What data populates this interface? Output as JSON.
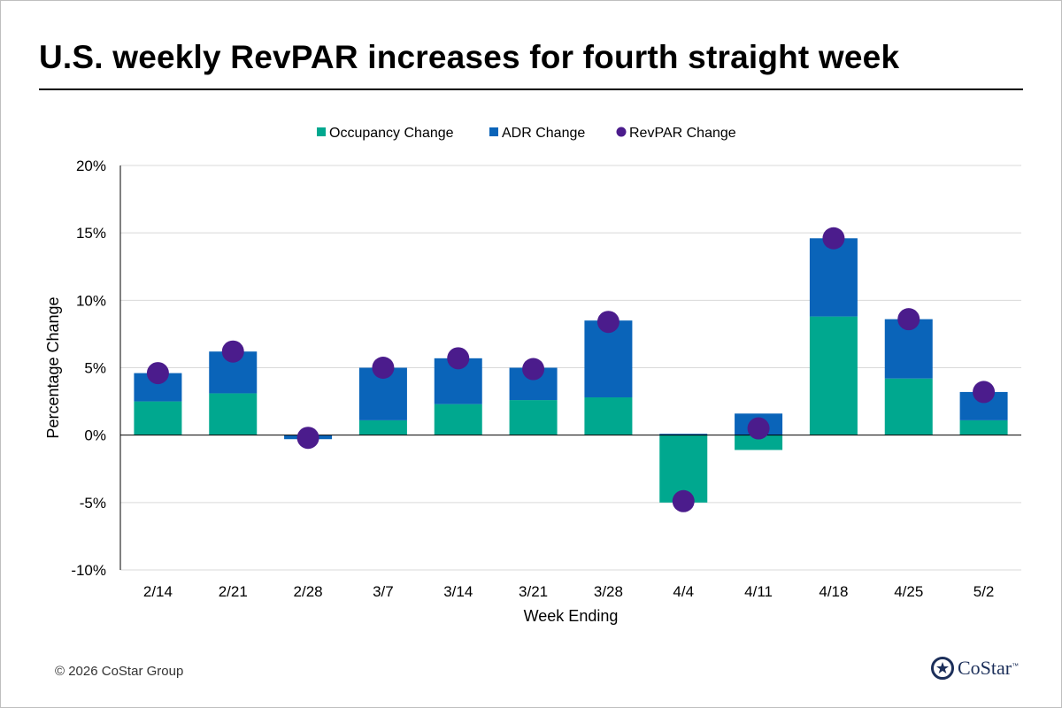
{
  "title": "U.S. weekly RevPAR increases for fourth straight week",
  "footer": "© 2026 CoStar Group",
  "logo": {
    "text": "CoStar",
    "mark": "™"
  },
  "colors": {
    "occupancy": "#00a88f",
    "adr": "#0a64b9",
    "revpar": "#4b1c8c",
    "grid": "#d9d9d9",
    "axis": "#000000",
    "logo": "#1c2f5a"
  },
  "chart_data": {
    "type": "bar",
    "stacked": true,
    "categories": [
      "2/14",
      "2/21",
      "2/28",
      "3/7",
      "3/14",
      "3/21",
      "3/28",
      "4/4",
      "4/11",
      "4/18",
      "4/25",
      "5/2"
    ],
    "series": [
      {
        "name": "Occupancy Change",
        "type": "bar",
        "values": [
          2.5,
          3.1,
          0.0,
          1.1,
          2.3,
          2.6,
          2.8,
          -5.0,
          -1.1,
          8.8,
          4.2,
          1.1
        ]
      },
      {
        "name": "ADR Change",
        "type": "bar",
        "values": [
          2.1,
          3.1,
          -0.3,
          3.9,
          3.4,
          2.4,
          5.7,
          0.1,
          1.6,
          5.8,
          4.4,
          2.1
        ]
      },
      {
        "name": "RevPAR Change",
        "type": "scatter",
        "values": [
          4.6,
          6.2,
          -0.2,
          5.0,
          5.7,
          4.9,
          8.4,
          -4.9,
          0.5,
          14.6,
          8.6,
          3.2
        ]
      }
    ],
    "xlabel": "Week Ending",
    "ylabel": "Percentage Change",
    "ylim": [
      -10,
      20
    ],
    "yticks": [
      20,
      15,
      10,
      5,
      0,
      -5,
      -10
    ],
    "ytick_labels": [
      "20%",
      "15%",
      "10%",
      "5%",
      "0%",
      "-5%",
      "-10%"
    ],
    "grid": true,
    "legend": "top-center"
  }
}
